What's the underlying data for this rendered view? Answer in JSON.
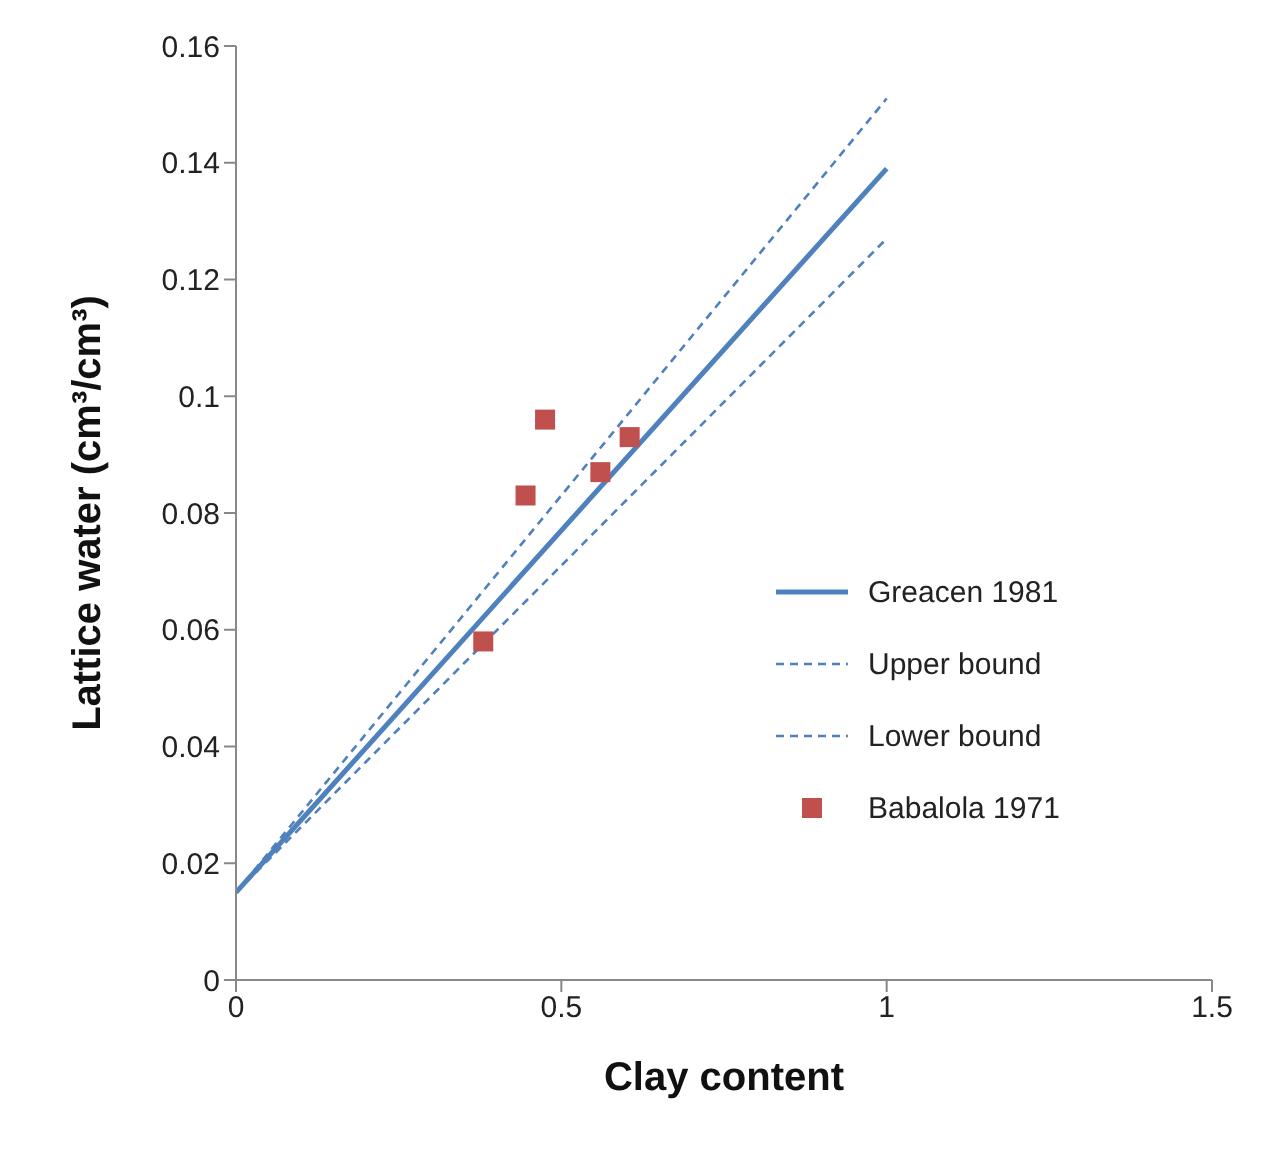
{
  "chart_data": {
    "type": "line",
    "xlabel": "Clay content",
    "ylabel": "Lattice water (cm³/cm³)",
    "xlim": [
      0,
      1.5
    ],
    "xticks": [
      0,
      0.5,
      1,
      1.5
    ],
    "ylim": [
      0,
      0.16
    ],
    "yticks": [
      0,
      0.02,
      0.04,
      0.06,
      0.08,
      0.1,
      0.12,
      0.14,
      0.16
    ],
    "grid": false,
    "legend": "right",
    "series": [
      {
        "name": "Greacen 1981",
        "type": "line",
        "color": "#4f81bd",
        "line_style": "solid",
        "marker": "none",
        "x": [
          0,
          1
        ],
        "values": [
          0.015,
          0.139
        ]
      },
      {
        "name": "Upper bound",
        "type": "line",
        "color": "#4f81bd",
        "line_style": "dashed",
        "marker": "none",
        "x": [
          0,
          1
        ],
        "values": [
          0.015,
          0.151
        ]
      },
      {
        "name": "Lower bound",
        "type": "line",
        "color": "#4f81bd",
        "line_style": "dashed",
        "marker": "none",
        "x": [
          0,
          1
        ],
        "values": [
          0.015,
          0.127
        ]
      },
      {
        "name": "Babalola 1971",
        "type": "scatter",
        "color": "#c0504d",
        "marker": "square",
        "x": [
          0.38,
          0.445,
          0.475,
          0.56,
          0.605
        ],
        "values": [
          0.058,
          0.083,
          0.096,
          0.087,
          0.093
        ]
      }
    ]
  }
}
